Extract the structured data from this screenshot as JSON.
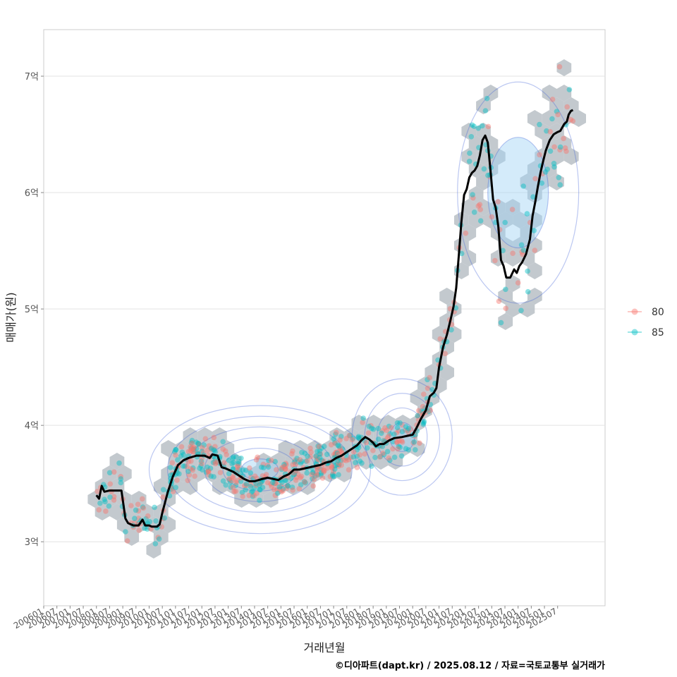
{
  "chart_data": {
    "type": "scatter",
    "xlabel": "거래년월",
    "ylabel": "매매가(원)",
    "caption": "©디아파트(dapt.kr) / 2025.08.12 / 자료=국토교통부 실거래가",
    "x_ticks": [
      "200601",
      "200607",
      "200701",
      "200707",
      "200801",
      "200807",
      "200901",
      "200907",
      "201001",
      "201007",
      "201101",
      "201107",
      "201201",
      "201207",
      "201301",
      "201307",
      "201401",
      "201407",
      "201501",
      "201507",
      "201601",
      "201607",
      "201701",
      "201707",
      "201801",
      "201807",
      "201901",
      "201907",
      "202001",
      "202007",
      "202101",
      "202107",
      "202201",
      "202207",
      "202301",
      "202307",
      "202401",
      "202407",
      "202501",
      "202507"
    ],
    "y_ticks": [
      {
        "value": 3,
        "label": "3억"
      },
      {
        "value": 4,
        "label": "4억"
      },
      {
        "value": 5,
        "label": "5억"
      },
      {
        "value": 6,
        "label": "6억"
      },
      {
        "value": 7,
        "label": "7억"
      }
    ],
    "ylim": [
      2.45,
      7.4
    ],
    "xlim": [
      2006.0,
      2027.3
    ],
    "grid": true,
    "legend": {
      "placement": "right",
      "entries": [
        {
          "label": "80",
          "color": "#F8766D"
        },
        {
          "label": "85",
          "color": "#00BFC4"
        }
      ]
    },
    "hexbin_color": "#b8bfc6",
    "density_contour_color": "#3d5fd6",
    "trend_line_color": "#000000",
    "trend_line": [
      [
        2008.0,
        3.4
      ],
      [
        2008.1,
        3.37
      ],
      [
        2008.2,
        3.48
      ],
      [
        2008.3,
        3.43
      ],
      [
        2008.5,
        3.44
      ],
      [
        2008.8,
        3.44
      ],
      [
        2008.95,
        3.44
      ],
      [
        2009.1,
        3.2
      ],
      [
        2009.2,
        3.16
      ],
      [
        2009.4,
        3.14
      ],
      [
        2009.6,
        3.14
      ],
      [
        2009.75,
        3.19
      ],
      [
        2009.85,
        3.14
      ],
      [
        2010.0,
        3.14
      ],
      [
        2010.1,
        3.13
      ],
      [
        2010.3,
        3.13
      ],
      [
        2010.4,
        3.15
      ],
      [
        2010.5,
        3.25
      ],
      [
        2010.7,
        3.42
      ],
      [
        2010.9,
        3.56
      ],
      [
        2011.1,
        3.66
      ],
      [
        2011.3,
        3.7
      ],
      [
        2011.5,
        3.72
      ],
      [
        2011.8,
        3.74
      ],
      [
        2012.1,
        3.74
      ],
      [
        2012.3,
        3.72
      ],
      [
        2012.4,
        3.75
      ],
      [
        2012.6,
        3.74
      ],
      [
        2012.75,
        3.64
      ],
      [
        2012.9,
        3.63
      ],
      [
        2013.2,
        3.6
      ],
      [
        2013.4,
        3.57
      ],
      [
        2013.6,
        3.54
      ],
      [
        2013.8,
        3.52
      ],
      [
        2014.0,
        3.52
      ],
      [
        2014.3,
        3.54
      ],
      [
        2014.5,
        3.55
      ],
      [
        2014.7,
        3.54
      ],
      [
        2014.9,
        3.53
      ],
      [
        2015.1,
        3.56
      ],
      [
        2015.3,
        3.58
      ],
      [
        2015.5,
        3.62
      ],
      [
        2015.7,
        3.62
      ],
      [
        2015.9,
        3.63
      ],
      [
        2016.1,
        3.64
      ],
      [
        2016.3,
        3.65
      ],
      [
        2016.5,
        3.66
      ],
      [
        2016.7,
        3.68
      ],
      [
        2016.9,
        3.69
      ],
      [
        2017.1,
        3.72
      ],
      [
        2017.3,
        3.74
      ],
      [
        2017.5,
        3.77
      ],
      [
        2017.7,
        3.8
      ],
      [
        2017.9,
        3.83
      ],
      [
        2018.05,
        3.87
      ],
      [
        2018.2,
        3.9
      ],
      [
        2018.35,
        3.88
      ],
      [
        2018.5,
        3.85
      ],
      [
        2018.6,
        3.82
      ],
      [
        2018.75,
        3.84
      ],
      [
        2018.9,
        3.84
      ],
      [
        2019.1,
        3.87
      ],
      [
        2019.3,
        3.89
      ],
      [
        2019.6,
        3.9
      ],
      [
        2019.8,
        3.91
      ],
      [
        2020.0,
        3.92
      ],
      [
        2020.15,
        3.98
      ],
      [
        2020.3,
        4.05
      ],
      [
        2020.5,
        4.13
      ],
      [
        2020.65,
        4.25
      ],
      [
        2020.8,
        4.28
      ],
      [
        2020.9,
        4.32
      ],
      [
        2021.0,
        4.5
      ],
      [
        2021.15,
        4.67
      ],
      [
        2021.3,
        4.78
      ],
      [
        2021.45,
        4.92
      ],
      [
        2021.55,
        5.02
      ],
      [
        2021.65,
        5.18
      ],
      [
        2021.75,
        5.46
      ],
      [
        2021.85,
        5.75
      ],
      [
        2021.95,
        5.98
      ],
      [
        2022.05,
        6.03
      ],
      [
        2022.15,
        6.13
      ],
      [
        2022.25,
        6.17
      ],
      [
        2022.35,
        6.19
      ],
      [
        2022.45,
        6.23
      ],
      [
        2022.55,
        6.32
      ],
      [
        2022.65,
        6.45
      ],
      [
        2022.75,
        6.49
      ],
      [
        2022.85,
        6.43
      ],
      [
        2022.95,
        6.2
      ],
      [
        2023.05,
        5.94
      ],
      [
        2023.15,
        5.87
      ],
      [
        2023.25,
        5.71
      ],
      [
        2023.35,
        5.42
      ],
      [
        2023.45,
        5.37
      ],
      [
        2023.55,
        5.27
      ],
      [
        2023.7,
        5.27
      ],
      [
        2023.85,
        5.34
      ],
      [
        2023.95,
        5.31
      ],
      [
        2024.05,
        5.37
      ],
      [
        2024.15,
        5.4
      ],
      [
        2024.3,
        5.47
      ],
      [
        2024.45,
        5.6
      ],
      [
        2024.55,
        5.8
      ],
      [
        2024.65,
        5.92
      ],
      [
        2024.75,
        6.05
      ],
      [
        2024.85,
        6.17
      ],
      [
        2024.95,
        6.27
      ],
      [
        2025.05,
        6.36
      ],
      [
        2025.2,
        6.45
      ],
      [
        2025.35,
        6.5
      ],
      [
        2025.5,
        6.52
      ],
      [
        2025.6,
        6.53
      ],
      [
        2025.75,
        6.59
      ],
      [
        2025.85,
        6.61
      ],
      [
        2025.92,
        6.67
      ],
      [
        2026.0,
        6.7
      ],
      [
        2026.08,
        6.71
      ]
    ]
  }
}
